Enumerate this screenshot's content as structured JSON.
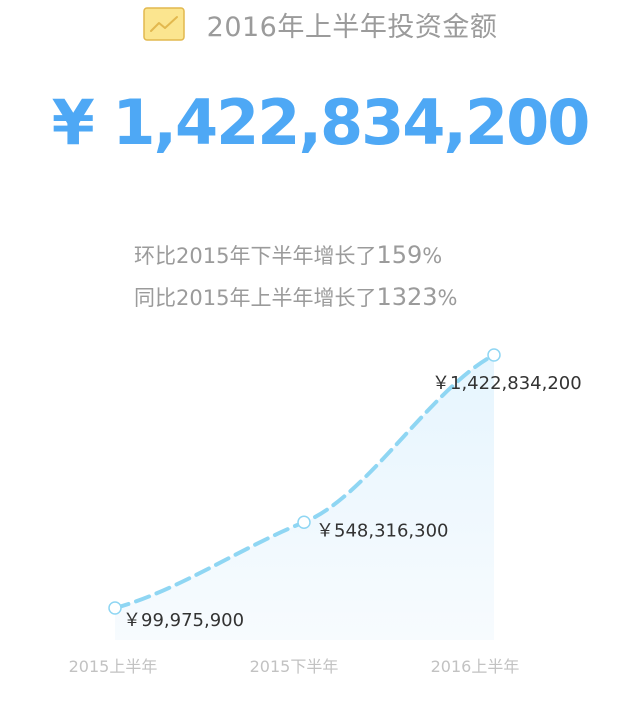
{
  "header": {
    "icon": "line-chart-icon",
    "title": "2016年上半年投资金额"
  },
  "total_amount": "¥ 1,422,834,200",
  "comparisons": [
    {
      "text": "环比2015年下半年增长了",
      "value": "159",
      "unit": "%"
    },
    {
      "text": "同比2015年上半年增长了",
      "value": "1323",
      "unit": "%"
    }
  ],
  "colors": {
    "accent": "#4ea8f5",
    "line": "#8fd6f3",
    "area": "#eef8fe",
    "muted_text": "#9b9b9b",
    "axis_text": "#c2c2c2",
    "icon_bg": "#fbe58f",
    "icon_border": "#e2b84e"
  },
  "chart_data": {
    "type": "area",
    "categories": [
      "2015上半年",
      "2015下半年",
      "2016上半年"
    ],
    "values": [
      99975900,
      548316300,
      1422834200
    ],
    "data_labels": [
      "￥99,975,900",
      "￥548,316,300",
      "￥1,422,834,200"
    ],
    "line_style": "dashed",
    "grid": false
  }
}
